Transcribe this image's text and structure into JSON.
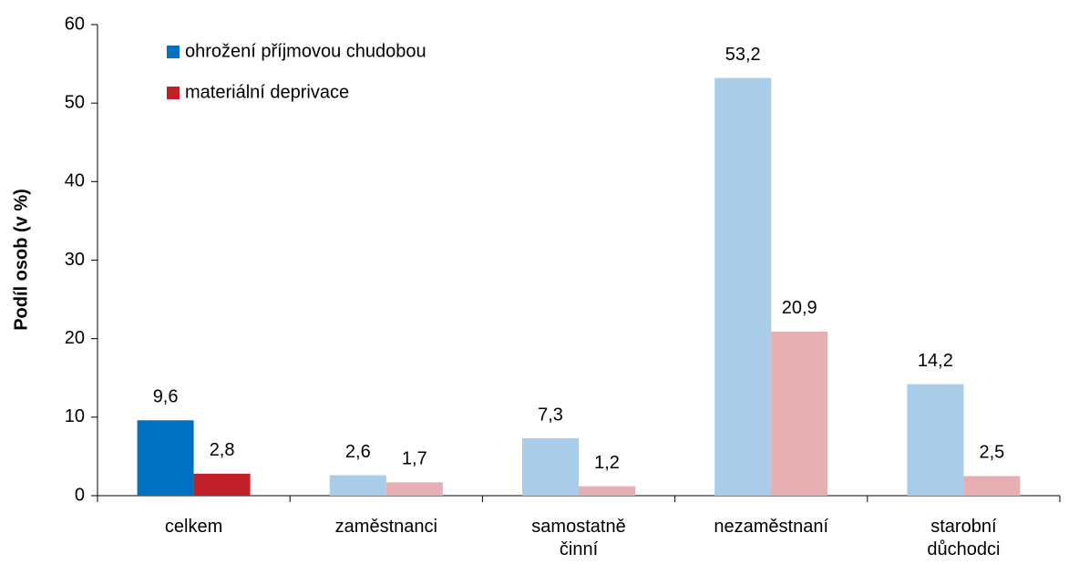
{
  "chart_data": {
    "type": "bar",
    "y_label": "Podíl osob (v %)",
    "categories": [
      "celkem",
      "zaměstnanci",
      "samostatně činní",
      "nezaměstnaní",
      "starobní důchodci"
    ],
    "series": [
      {
        "name": "ohrožení příjmovou chudobou",
        "color": "#0070c0",
        "colors": [
          "#0070c0",
          "#a9cde8",
          "#a9cde8",
          "#a9cde8",
          "#a9cde8"
        ],
        "values": [
          9.6,
          2.6,
          7.3,
          53.2,
          14.2
        ],
        "value_labels": [
          "9,6",
          "2,6",
          "7,3",
          "53,2",
          "14,2"
        ]
      },
      {
        "name": "materiální deprivace",
        "color": "#c0202a",
        "colors": [
          "#c0202a",
          "#e6afb3",
          "#e6afb3",
          "#e6afb3",
          "#e6afb3"
        ],
        "values": [
          2.8,
          1.7,
          1.2,
          20.9,
          2.5
        ],
        "value_labels": [
          "2,8",
          "1,7",
          "1,2",
          "20,9",
          "2,5"
        ]
      }
    ],
    "ylim": [
      0,
      60
    ],
    "yticks": [
      0,
      10,
      20,
      30,
      40,
      50,
      60
    ],
    "legend": "top-left"
  }
}
